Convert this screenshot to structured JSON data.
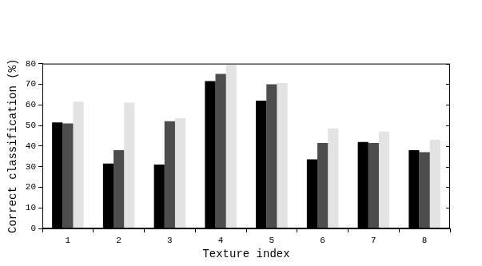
{
  "chart_data": {
    "type": "bar",
    "x_label": "Texture index",
    "y_label": "Correct classification (%)",
    "categories": [
      "1",
      "2",
      "3",
      "4",
      "5",
      "6",
      "7",
      "8"
    ],
    "series": [
      {
        "color": "#000000",
        "values": [
          51.5,
          31.5,
          31,
          71.5,
          62,
          33.5,
          42,
          38
        ]
      },
      {
        "color": "#4d4d4d",
        "values": [
          51,
          38,
          52,
          75,
          70,
          41.5,
          41.5,
          37
        ]
      },
      {
        "color": "#e3e3e3",
        "values": [
          61.5,
          61,
          53.5,
          79.5,
          70.5,
          48.5,
          47,
          43
        ]
      }
    ],
    "ylim": [
      0,
      80
    ],
    "yticks": [
      0,
      10,
      20,
      30,
      40,
      50,
      60,
      70,
      80
    ],
    "grid": false
  }
}
